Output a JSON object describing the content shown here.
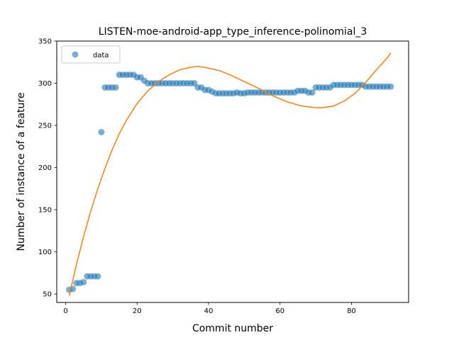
{
  "chart_data": {
    "type": "scatter",
    "title": "LISTEN-moe-android-app_type_inference-polinomial_3",
    "xlabel": "Commit number",
    "ylabel": "Number of instance of a feature",
    "xlim": [
      -2.5,
      96
    ],
    "ylim": [
      40,
      350
    ],
    "xticks": [
      0,
      20,
      40,
      60,
      80
    ],
    "yticks": [
      50,
      100,
      150,
      200,
      250,
      300,
      350
    ],
    "grid": false,
    "legend_position": "upper-left",
    "series": [
      {
        "name": "data",
        "kind": "scatter",
        "color": "#1f77b4",
        "x": [
          1,
          2,
          3,
          4,
          5,
          6,
          7,
          8,
          9,
          10,
          11,
          12,
          13,
          14,
          15,
          16,
          17,
          18,
          19,
          20,
          21,
          22,
          23,
          24,
          25,
          26,
          27,
          28,
          29,
          30,
          31,
          32,
          33,
          34,
          35,
          36,
          37,
          38,
          39,
          40,
          41,
          42,
          43,
          44,
          45,
          46,
          47,
          48,
          49,
          50,
          51,
          52,
          53,
          54,
          55,
          56,
          57,
          58,
          59,
          60,
          61,
          62,
          63,
          64,
          65,
          66,
          67,
          68,
          69,
          70,
          71,
          72,
          73,
          74,
          75,
          76,
          77,
          78,
          79,
          80,
          81,
          82,
          83,
          84,
          85,
          86,
          87,
          88,
          89,
          90,
          91
        ],
        "y": [
          55,
          56,
          63,
          63,
          64,
          71,
          71,
          71,
          71,
          242,
          295,
          295,
          295,
          295,
          310,
          310,
          310,
          310,
          310,
          307,
          307,
          303,
          300,
          300,
          300,
          300,
          300,
          300,
          300,
          300,
          300,
          300,
          300,
          300,
          300,
          300,
          295,
          295,
          292,
          292,
          290,
          288,
          288,
          288,
          288,
          288,
          288,
          289,
          288,
          288,
          289,
          289,
          289,
          289,
          289,
          289,
          289,
          289,
          289,
          289,
          289,
          289,
          289,
          289,
          291,
          291,
          291,
          289,
          289,
          295,
          295,
          295,
          295,
          295,
          298,
          298,
          298,
          298,
          298,
          298,
          298,
          298,
          298,
          296,
          296,
          296,
          296,
          296,
          296,
          296,
          296
        ]
      },
      {
        "kind": "line",
        "color": "#ff7f0e",
        "x": [
          1,
          3,
          5,
          7,
          9,
          11,
          13,
          15,
          17,
          20,
          23,
          26,
          29,
          32,
          35,
          37,
          40,
          43,
          46,
          50,
          54,
          58,
          62,
          66,
          70,
          72,
          75,
          78,
          81,
          84,
          87,
          90,
          91
        ],
        "y": [
          48,
          85,
          118,
          148,
          175,
          199,
          221,
          240,
          256,
          276,
          291,
          302,
          310,
          316,
          319,
          320,
          318,
          315,
          310,
          302,
          294,
          285,
          278,
          273,
          271,
          271,
          273,
          279,
          288,
          301,
          316,
          330,
          336
        ]
      }
    ]
  }
}
